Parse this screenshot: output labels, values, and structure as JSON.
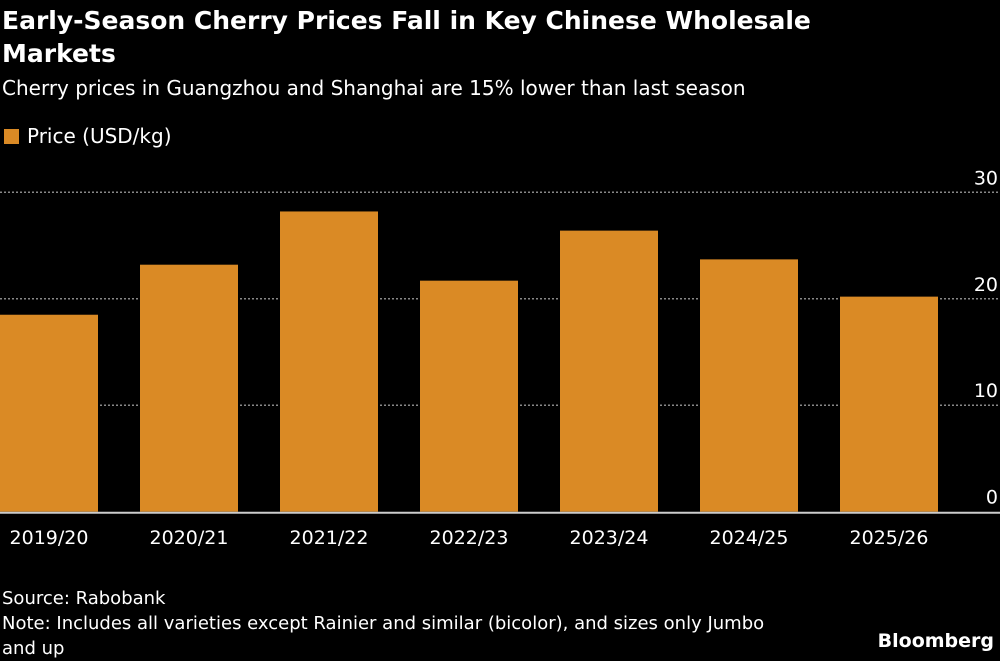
{
  "chart_data": {
    "type": "bar",
    "title": "Early-Season Cherry Prices Fall in Key Chinese Wholesale Markets",
    "subtitle": "Cherry prices in Guangzhou and Shanghai are 15% lower than last season",
    "categories": [
      "2019/20",
      "2020/21",
      "2021/22",
      "2022/23",
      "2023/24",
      "2024/25",
      "2025/26"
    ],
    "series": [
      {
        "name": "Price (USD/kg)",
        "values": [
          18.5,
          23.2,
          28.2,
          21.7,
          26.4,
          23.7,
          20.2
        ],
        "color": "#da8a25"
      }
    ],
    "ylim": [
      0,
      30
    ],
    "yticks": [
      0,
      10,
      20,
      30
    ],
    "y_axis_side": "right",
    "grid": true,
    "legend": "top-left",
    "xlabel": "",
    "ylabel": ""
  },
  "footer": {
    "source": "Source: Rabobank",
    "note": "Note: Includes all varieties except Rainier and similar (bicolor), and sizes only Jumbo and up",
    "logo": "Bloomberg"
  }
}
